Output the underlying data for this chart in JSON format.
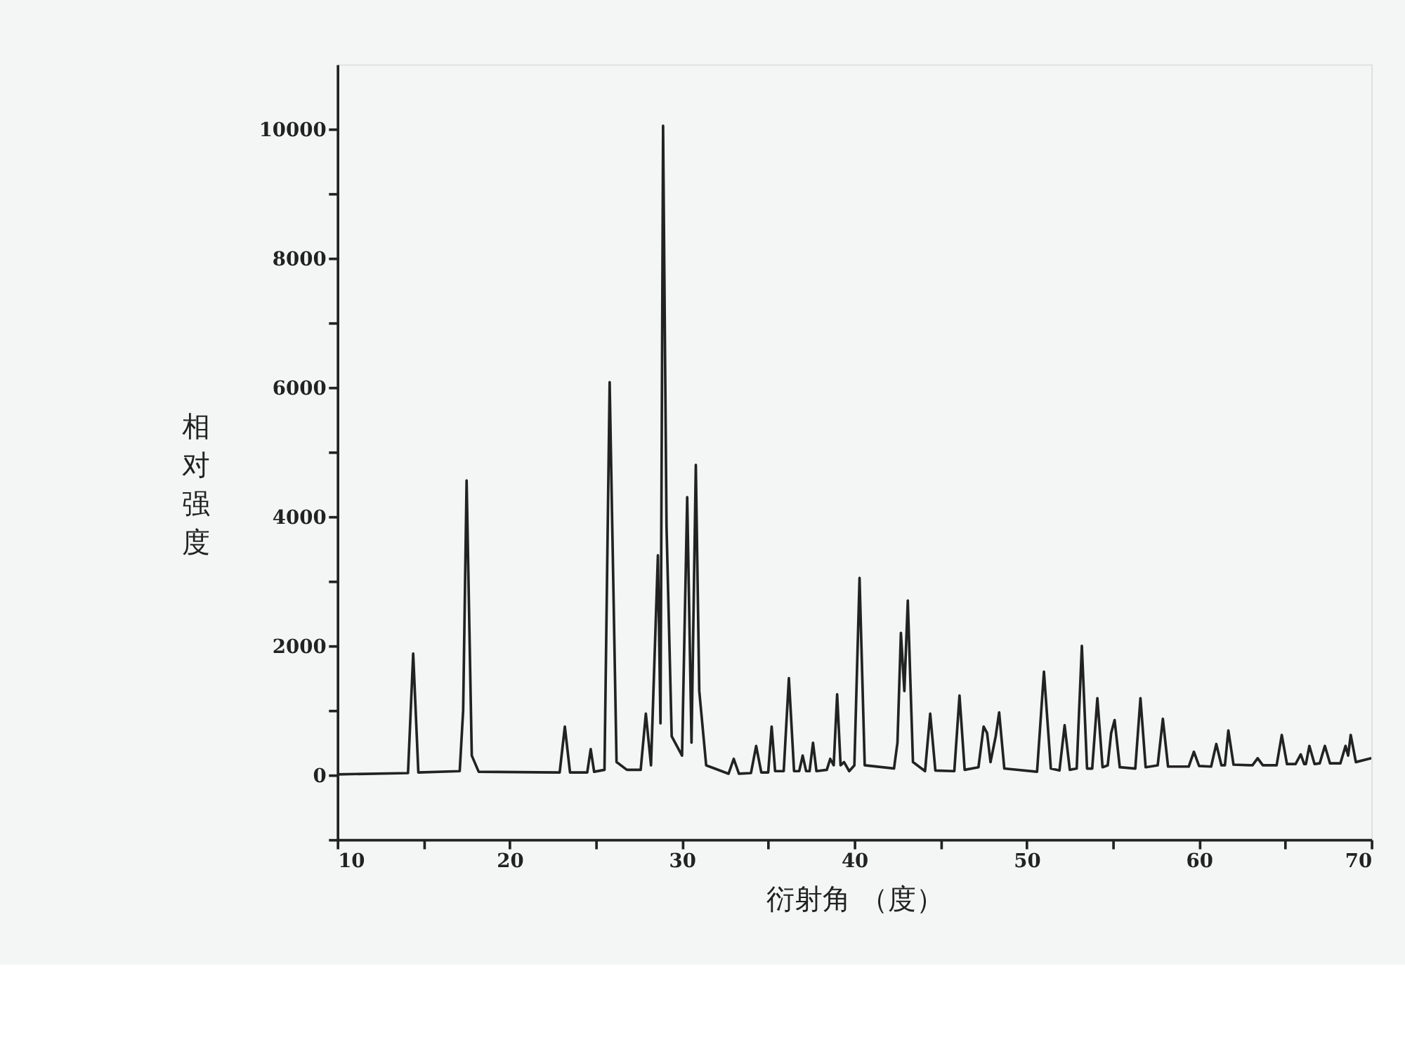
{
  "chart_data": {
    "type": "line",
    "xlabel": "衍射角 （度）",
    "ylabel": "相对强度",
    "xlim": [
      10,
      70
    ],
    "ylim": [
      -1000,
      11000
    ],
    "xticks": [
      10,
      {
        "value": 15,
        "label": null
      },
      20,
      {
        "value": 25,
        "label": null
      },
      30,
      {
        "value": 35,
        "label": null
      },
      40,
      {
        "value": 45,
        "label": null
      },
      50,
      {
        "value": 55,
        "label": null
      },
      60,
      {
        "value": 65,
        "label": null
      },
      70
    ],
    "yticks": [
      {
        "value": -1000,
        "label": null
      },
      0,
      {
        "value": 1000,
        "label": null
      },
      2000,
      {
        "value": 3000,
        "label": null
      },
      4000,
      {
        "value": 5000,
        "label": null
      },
      6000,
      {
        "value": 7000,
        "label": null
      },
      8000,
      {
        "value": 9000,
        "label": null
      },
      10000
    ],
    "grid": false,
    "marker": "none",
    "line_style": "solid",
    "series": [
      {
        "color": "#222222",
        "x": [
          10,
          14.1,
          14.4,
          14.7,
          17.1,
          17.3,
          17.5,
          17.8,
          18.2,
          22.9,
          23.2,
          23.5,
          24.5,
          24.7,
          24.9,
          25.5,
          25.8,
          26.2,
          26.8,
          27.6,
          27.9,
          28.2,
          28.6,
          28.75,
          28.9,
          29.1,
          29.4,
          30.0,
          30.3,
          30.55,
          30.8,
          31.0,
          31.4,
          32.7,
          33.0,
          33.3,
          34.0,
          34.3,
          34.6,
          35.0,
          35.2,
          35.4,
          35.9,
          36.2,
          36.5,
          36.8,
          37.0,
          37.2,
          37.4,
          37.6,
          37.8,
          38.4,
          38.6,
          38.8,
          39.0,
          39.2,
          39.4,
          39.7,
          40.0,
          40.3,
          40.6,
          42.3,
          42.5,
          42.7,
          42.9,
          43.1,
          43.4,
          44.1,
          44.4,
          44.7,
          45.8,
          46.1,
          46.4,
          47.2,
          47.5,
          47.7,
          47.9,
          48.2,
          48.4,
          48.7,
          50.6,
          51.0,
          51.4,
          51.9,
          52.2,
          52.5,
          52.9,
          53.2,
          53.5,
          53.8,
          54.1,
          54.4,
          54.7,
          54.9,
          55.1,
          55.4,
          56.3,
          56.6,
          56.9,
          57.6,
          57.9,
          58.2,
          59.4,
          59.7,
          60.0,
          60.7,
          61.0,
          61.3,
          61.5,
          61.7,
          62.0,
          63.1,
          63.4,
          63.7,
          64.5,
          64.8,
          65.1,
          65.6,
          65.9,
          66.1,
          66.2,
          66.4,
          66.7,
          67.0,
          67.3,
          67.6,
          68.2,
          68.5,
          68.65,
          68.8,
          69.1,
          70
        ],
        "values": [
          10,
          30,
          1880,
          40,
          60,
          1000,
          4560,
          300,
          50,
          40,
          750,
          40,
          40,
          400,
          50,
          80,
          6080,
          200,
          80,
          80,
          950,
          150,
          3400,
          800,
          10050,
          3850,
          600,
          300,
          4300,
          500,
          4800,
          1300,
          150,
          20,
          250,
          20,
          30,
          450,
          40,
          40,
          750,
          60,
          60,
          1500,
          60,
          60,
          300,
          60,
          60,
          500,
          60,
          80,
          250,
          150,
          1250,
          150,
          200,
          60,
          150,
          3050,
          150,
          100,
          500,
          2200,
          1300,
          2700,
          200,
          60,
          950,
          70,
          60,
          1230,
          80,
          120,
          750,
          650,
          200,
          600,
          970,
          100,
          50,
          1600,
          100,
          70,
          770,
          80,
          100,
          2000,
          100,
          100,
          1190,
          120,
          150,
          650,
          850,
          120,
          100,
          1190,
          120,
          150,
          870,
          130,
          130,
          360,
          140,
          130,
          480,
          150,
          150,
          690,
          160,
          150,
          260,
          150,
          150,
          620,
          170,
          170,
          320,
          170,
          170,
          450,
          170,
          180,
          450,
          180,
          180,
          450,
          300,
          620,
          200,
          260
        ]
      }
    ]
  }
}
